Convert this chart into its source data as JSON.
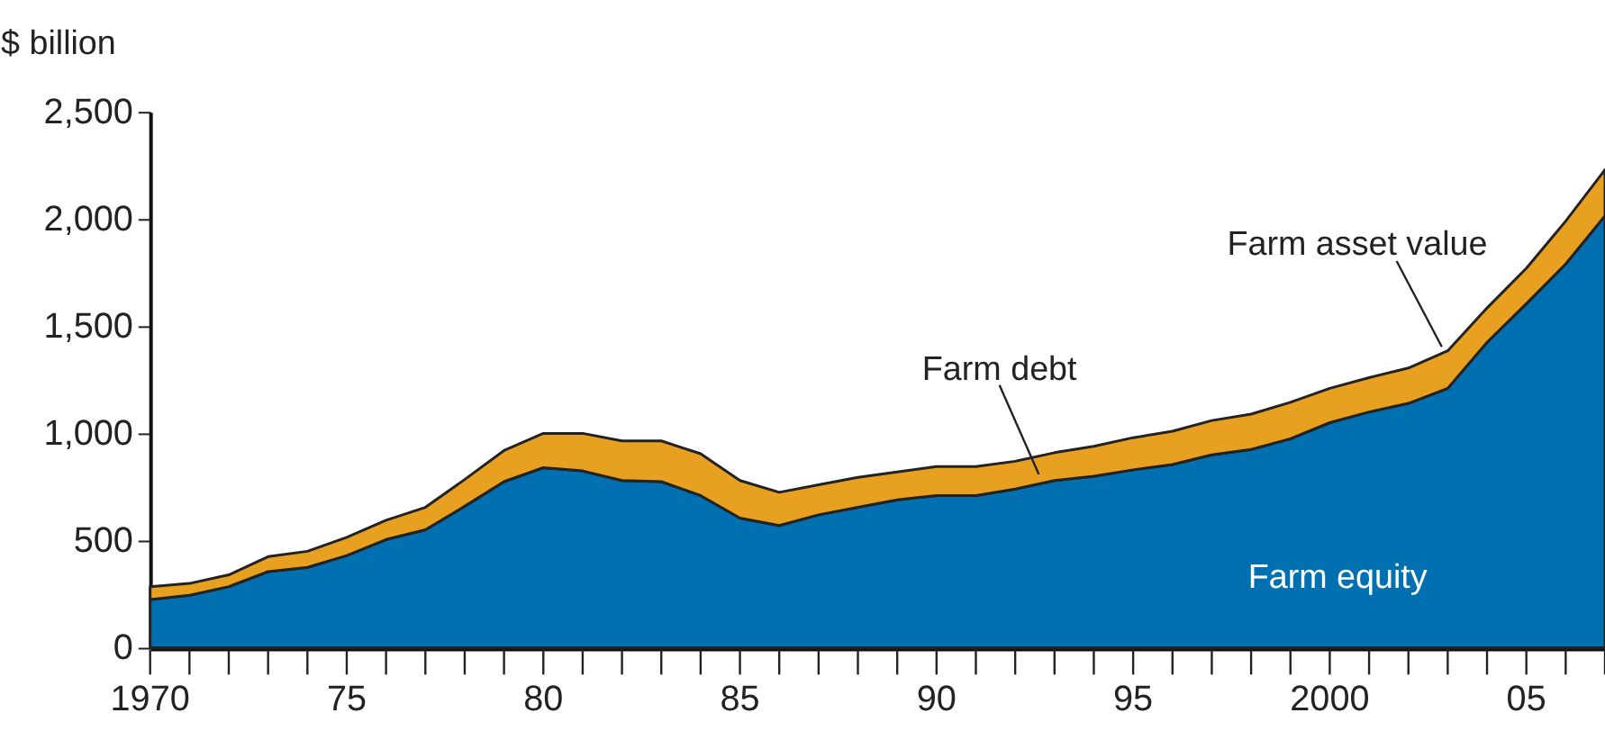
{
  "chart_data": {
    "type": "area",
    "stacked": true,
    "ylabel": "$ billion",
    "x": [
      1970,
      1971,
      1972,
      1973,
      1974,
      1975,
      1976,
      1977,
      1978,
      1979,
      1980,
      1981,
      1982,
      1983,
      1984,
      1985,
      1986,
      1987,
      1988,
      1989,
      1990,
      1991,
      1992,
      1993,
      1994,
      1995,
      1996,
      1997,
      1998,
      1999,
      2000,
      2001,
      2002,
      2003,
      2004,
      2005,
      2006,
      2007
    ],
    "series": [
      {
        "name": "Farm equity",
        "color": "#0070b0",
        "values": [
          225,
          245,
          285,
          355,
          375,
          430,
          505,
          550,
          660,
          775,
          840,
          825,
          780,
          775,
          710,
          605,
          570,
          620,
          655,
          690,
          710,
          710,
          740,
          780,
          800,
          830,
          855,
          900,
          925,
          975,
          1050,
          1100,
          1140,
          1210,
          1425,
          1605,
          1790,
          2015
        ]
      },
      {
        "name": "Farm debt",
        "color": "#e8a020",
        "values": [
          60,
          55,
          55,
          70,
          75,
          85,
          90,
          105,
          125,
          145,
          160,
          175,
          185,
          190,
          195,
          175,
          155,
          140,
          140,
          130,
          135,
          135,
          130,
          130,
          140,
          150,
          155,
          160,
          165,
          170,
          160,
          160,
          165,
          175,
          160,
          165,
          200,
          215
        ]
      }
    ],
    "annotations": [
      {
        "text": "Farm asset value",
        "x": 2003,
        "y": 1384
      }
    ],
    "xlim": [
      1970,
      2007
    ],
    "ylim": [
      0,
      2500
    ],
    "xticks": [
      {
        "value": 1970,
        "label": "1970"
      },
      {
        "value": 1971,
        "label": null
      },
      {
        "value": 1972,
        "label": null
      },
      {
        "value": 1973,
        "label": null
      },
      {
        "value": 1974,
        "label": null
      },
      {
        "value": 1975,
        "label": "75"
      },
      {
        "value": 1976,
        "label": null
      },
      {
        "value": 1977,
        "label": null
      },
      {
        "value": 1978,
        "label": null
      },
      {
        "value": 1979,
        "label": null
      },
      {
        "value": 1980,
        "label": "80"
      },
      {
        "value": 1981,
        "label": null
      },
      {
        "value": 1982,
        "label": null
      },
      {
        "value": 1983,
        "label": null
      },
      {
        "value": 1984,
        "label": null
      },
      {
        "value": 1985,
        "label": "85"
      },
      {
        "value": 1986,
        "label": null
      },
      {
        "value": 1987,
        "label": null
      },
      {
        "value": 1988,
        "label": null
      },
      {
        "value": 1989,
        "label": null
      },
      {
        "value": 1990,
        "label": "90"
      },
      {
        "value": 1991,
        "label": null
      },
      {
        "value": 1992,
        "label": null
      },
      {
        "value": 1993,
        "label": null
      },
      {
        "value": 1994,
        "label": null
      },
      {
        "value": 1995,
        "label": "95"
      },
      {
        "value": 1996,
        "label": null
      },
      {
        "value": 1997,
        "label": null
      },
      {
        "value": 1998,
        "label": null
      },
      {
        "value": 1999,
        "label": null
      },
      {
        "value": 2000,
        "label": "2000"
      },
      {
        "value": 2001,
        "label": null
      },
      {
        "value": 2002,
        "label": null
      },
      {
        "value": 2003,
        "label": null
      },
      {
        "value": 2004,
        "label": null
      },
      {
        "value": 2005,
        "label": "05"
      },
      {
        "value": 2006,
        "label": null
      },
      {
        "value": 2007,
        "label": null
      }
    ],
    "yticks": [
      {
        "value": 0,
        "label": "0"
      },
      {
        "value": 500,
        "label": "500"
      },
      {
        "value": 1000,
        "label": "1,000"
      },
      {
        "value": 1500,
        "label": "1,500"
      },
      {
        "value": 2000,
        "label": "2,000"
      },
      {
        "value": 2500,
        "label": "2,500"
      }
    ],
    "grid": false,
    "legend": false
  }
}
